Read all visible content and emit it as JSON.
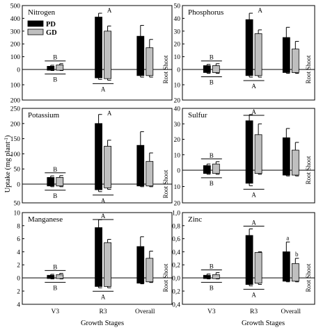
{
  "figure": {
    "ylabel": "Uptake (mg plant",
    "ylabel_sup": "-1",
    "ylabel_close": ")",
    "xlabel": "Growth Stages",
    "root_label": "Root",
    "shoot_label": "Shoot",
    "series_colors": {
      "PD": "#000000",
      "GD": "#bfbfbf"
    }
  },
  "chart_data": [
    {
      "type": "bar",
      "title": "Nitrogen",
      "categories": [
        "V3",
        "R3",
        "Overall"
      ],
      "series": [
        {
          "name": "PD",
          "shoot": [
            25,
            410,
            260
          ],
          "shoot_err": [
            8,
            30,
            85
          ],
          "root": [
            5,
            55,
            40
          ],
          "root_err": [
            2,
            10,
            10
          ]
        },
        {
          "name": "GD",
          "shoot": [
            35,
            300,
            170
          ],
          "shoot_err": [
            10,
            40,
            65
          ],
          "root": [
            5,
            60,
            40
          ],
          "root_err": [
            2,
            10,
            10
          ]
        }
      ],
      "yticks_shoot": [
        "0",
        "100",
        "200",
        "300",
        "400",
        "500"
      ],
      "yticks_root": [
        "100",
        "200"
      ],
      "yticks_root_values": [
        100,
        200
      ],
      "shoot_max": 500,
      "root_max": 200,
      "legend": [
        "PD",
        "GD"
      ],
      "labels_shoot": [
        {
          "cat": 0,
          "text": "B",
          "bar": true
        },
        {
          "cat": 1,
          "text": "A",
          "bar": false
        }
      ],
      "labels_root": [
        {
          "cat": 0,
          "text": "B",
          "bar": true
        },
        {
          "cat": 1,
          "text": "A",
          "bar": true
        }
      ]
    },
    {
      "type": "bar",
      "title": "Phosphorus",
      "categories": [
        "V3",
        "R3",
        "Overall"
      ],
      "series": [
        {
          "name": "PD",
          "shoot": [
            3,
            39,
            25
          ],
          "shoot_err": [
            1,
            5,
            8
          ],
          "root": [
            2,
            4,
            2
          ],
          "root_err": [
            0.5,
            1,
            0.5
          ]
        },
        {
          "name": "GD",
          "shoot": [
            3,
            28,
            16
          ],
          "shoot_err": [
            1.5,
            3,
            6
          ],
          "root": [
            2,
            4,
            2
          ],
          "root_err": [
            0.5,
            1,
            0.5
          ]
        }
      ],
      "yticks_shoot": [
        "0",
        "10",
        "20",
        "30",
        "40",
        "50"
      ],
      "yticks_root": [
        "10",
        "20"
      ],
      "yticks_root_values": [
        10,
        20
      ],
      "shoot_max": 50,
      "root_max": 20,
      "legend": [],
      "labels_shoot": [
        {
          "cat": 0,
          "text": "B",
          "bar": true
        },
        {
          "cat": 1,
          "text": "A",
          "bar": false
        }
      ],
      "labels_root": [
        {
          "cat": 0,
          "text": "B",
          "bar": true
        },
        {
          "cat": 1,
          "text": "A",
          "bar": true
        }
      ]
    },
    {
      "type": "bar",
      "title": "Potassium",
      "categories": [
        "V3",
        "R3",
        "Overall"
      ],
      "series": [
        {
          "name": "PD",
          "shoot": [
            22,
            200,
            128
          ],
          "shoot_err": [
            5,
            30,
            45
          ],
          "root": [
            5,
            15,
            5
          ],
          "root_err": [
            2,
            5,
            2
          ]
        },
        {
          "name": "GD",
          "shoot": [
            22,
            125,
            75
          ],
          "shoot_err": [
            6,
            20,
            28
          ],
          "root": [
            5,
            10,
            5
          ],
          "root_err": [
            2,
            4,
            2
          ]
        }
      ],
      "yticks_shoot": [
        "0",
        "50",
        "100",
        "150",
        "200",
        "250"
      ],
      "yticks_root": [
        "50"
      ],
      "yticks_root_values": [
        50
      ],
      "shoot_max": 250,
      "root_max": 50,
      "legend": [],
      "labels_shoot": [
        {
          "cat": 0,
          "text": "B",
          "bar": true
        },
        {
          "cat": 1,
          "text": "A",
          "bar": false
        }
      ],
      "labels_root": [
        {
          "cat": 0,
          "text": "B",
          "bar": true
        },
        {
          "cat": 1,
          "text": "A",
          "bar": true
        }
      ]
    },
    {
      "type": "bar",
      "title": "Sulfur",
      "categories": [
        "V3",
        "R3",
        "Overall"
      ],
      "series": [
        {
          "name": "PD",
          "shoot": [
            3,
            32,
            21
          ],
          "shoot_err": [
            1,
            4,
            6
          ],
          "root": [
            2,
            8,
            3
          ],
          "root_err": [
            0.5,
            1.5,
            0.5
          ]
        },
        {
          "name": "GD",
          "shoot": [
            4,
            23,
            13
          ],
          "shoot_err": [
            1.5,
            7,
            5
          ],
          "root": [
            2,
            2,
            3
          ],
          "root_err": [
            0.5,
            0.5,
            0.5
          ]
        }
      ],
      "yticks_shoot": [
        "0",
        "10",
        "20",
        "30",
        "40"
      ],
      "yticks_root": [
        "10",
        "20"
      ],
      "yticks_root_values": [
        10,
        20
      ],
      "shoot_max": 40,
      "root_max": 20,
      "legend": [],
      "labels_shoot": [
        {
          "cat": 0,
          "text": "B",
          "bar": true
        },
        {
          "cat": 1,
          "text": "A",
          "bar": true
        }
      ],
      "labels_root": [
        {
          "cat": 0,
          "text": "B",
          "bar": true
        },
        {
          "cat": 1,
          "text": "A",
          "bar": true
        }
      ]
    },
    {
      "type": "bar",
      "title": "Manganese",
      "categories": [
        "V3",
        "R3",
        "Overall"
      ],
      "series": [
        {
          "name": "PD",
          "shoot": [
            0.4,
            7.7,
            4.8
          ],
          "shoot_err": [
            0.15,
            1.2,
            1.5
          ],
          "root": [
            0.1,
            1.3,
            0.8
          ],
          "root_err": [
            0.05,
            0.2,
            0.1
          ]
        },
        {
          "name": "GD",
          "shoot": [
            0.5,
            5.4,
            3.0
          ],
          "shoot_err": [
            0.2,
            0.5,
            1.1
          ],
          "root": [
            0.1,
            1.3,
            0.6
          ],
          "root_err": [
            0.05,
            0.2,
            0.1
          ]
        }
      ],
      "yticks_shoot": [
        "0",
        "2",
        "4",
        "6",
        "8",
        "10"
      ],
      "yticks_root": [
        "2",
        "4"
      ],
      "yticks_root_values": [
        2,
        4
      ],
      "shoot_max": 10,
      "root_max": 4,
      "legend": [],
      "labels_shoot": [
        {
          "cat": 0,
          "text": "B",
          "bar": true
        },
        {
          "cat": 1,
          "text": "A",
          "bar": true
        }
      ],
      "labels_root": [
        {
          "cat": 0,
          "text": "B",
          "bar": true
        },
        {
          "cat": 1,
          "text": "A",
          "bar": true
        }
      ]
    },
    {
      "type": "bar",
      "title": "Zinc",
      "categories": [
        "V3",
        "R3",
        "Overall"
      ],
      "series": [
        {
          "name": "PD",
          "shoot": [
            0.04,
            0.65,
            0.4
          ],
          "shoot_err": [
            0.02,
            0.1,
            0.15
          ],
          "root": [
            0.01,
            0.1,
            0.05
          ],
          "root_err": [
            0.005,
            0.02,
            0.01
          ]
        },
        {
          "name": "GD",
          "shoot": [
            0.05,
            0.39,
            0.22
          ],
          "shoot_err": [
            0.03,
            0.01,
            0.08
          ],
          "root": [
            0.01,
            0.08,
            0.05
          ],
          "root_err": [
            0.005,
            0.02,
            0.01
          ]
        }
      ],
      "yticks_shoot": [
        "0,0",
        "0,2",
        "0,4",
        "0,6",
        "0,8",
        "1,0"
      ],
      "yticks_root": [
        "0,2",
        "0,4"
      ],
      "yticks_root_values": [
        0.2,
        0.4
      ],
      "shoot_max": 1.0,
      "root_max": 0.4,
      "legend": [],
      "labels_shoot": [
        {
          "cat": 0,
          "text": "B",
          "bar": true
        },
        {
          "cat": 1,
          "text": "A",
          "bar": true
        },
        {
          "cat": 2,
          "text": "a",
          "bar": false,
          "series": 0
        },
        {
          "cat": 2,
          "text": "b",
          "bar": false,
          "series": 1
        }
      ],
      "labels_root": [
        {
          "cat": 0,
          "text": "B",
          "bar": true
        },
        {
          "cat": 1,
          "text": "A",
          "bar": true
        }
      ]
    }
  ]
}
